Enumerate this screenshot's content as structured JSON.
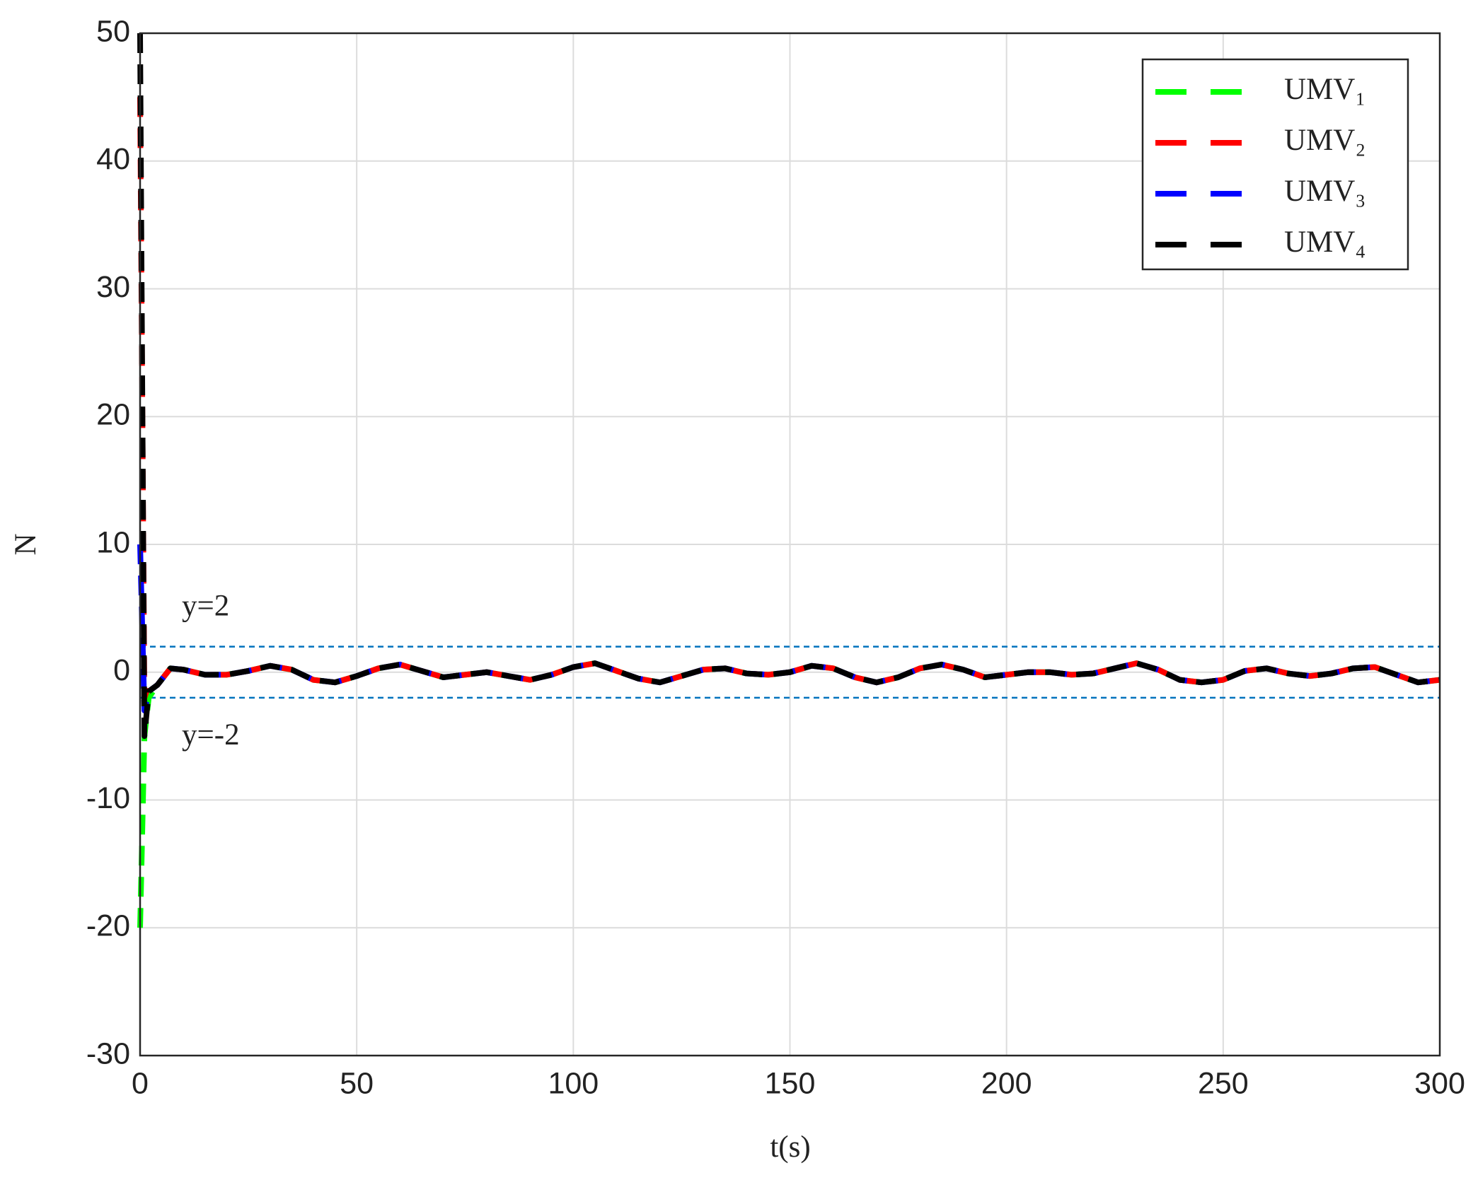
{
  "chart_data": {
    "type": "line",
    "x_label": "t(s)",
    "y_label": "N",
    "xlim": [
      0,
      300
    ],
    "xticks": [
      0,
      50,
      100,
      150,
      200,
      250,
      300
    ],
    "ylim": [
      -30,
      50
    ],
    "yticks": [
      -30,
      -20,
      -10,
      0,
      10,
      20,
      30,
      40,
      50
    ],
    "grid": true,
    "legend": "upper right",
    "x": [
      0,
      1,
      2,
      4,
      7,
      10,
      15,
      20,
      25,
      30,
      35,
      40,
      45,
      50,
      55,
      60,
      65,
      70,
      75,
      80,
      85,
      90,
      95,
      100,
      105,
      110,
      115,
      120,
      125,
      130,
      135,
      140,
      145,
      150,
      155,
      160,
      165,
      170,
      175,
      180,
      185,
      190,
      195,
      200,
      205,
      210,
      215,
      220,
      225,
      230,
      235,
      240,
      245,
      250,
      255,
      260,
      265,
      270,
      275,
      280,
      285,
      290,
      295,
      300
    ],
    "series": [
      {
        "name": "UMV₁",
        "color": "#00ff00",
        "values": [
          -20,
          -5,
          -2,
          -1,
          0.3,
          0.2,
          -0.2,
          -0.2,
          0.1,
          0.5,
          0.2,
          -0.6,
          -0.8,
          -0.3,
          0.3,
          0.6,
          0.1,
          -0.4,
          -0.2,
          0,
          -0.3,
          -0.6,
          -0.2,
          0.4,
          0.7,
          0.1,
          -0.5,
          -0.8,
          -0.3,
          0.2,
          0.3,
          -0.1,
          -0.2,
          0,
          0.5,
          0.3,
          -0.4,
          -0.8,
          -0.4,
          0.3,
          0.6,
          0.2,
          -0.4,
          -0.2,
          0,
          0,
          -0.2,
          -0.1,
          0.3,
          0.7,
          0.2,
          -0.6,
          -0.8,
          -0.6,
          0.1,
          0.3,
          -0.1,
          -0.3,
          -0.1,
          0.3,
          0.4,
          -0.2,
          -0.8,
          -0.6
        ]
      },
      {
        "name": "UMV₂",
        "color": "#ff0000",
        "values": [
          45,
          -2,
          -1,
          -1,
          0.3,
          0.2,
          -0.2,
          -0.2,
          0.1,
          0.5,
          0.2,
          -0.6,
          -0.8,
          -0.3,
          0.3,
          0.6,
          0.1,
          -0.4,
          -0.2,
          0,
          -0.3,
          -0.6,
          -0.2,
          0.4,
          0.7,
          0.1,
          -0.5,
          -0.8,
          -0.3,
          0.2,
          0.3,
          -0.1,
          -0.2,
          0,
          0.5,
          0.3,
          -0.4,
          -0.8,
          -0.4,
          0.3,
          0.6,
          0.2,
          -0.4,
          -0.2,
          0,
          0,
          -0.2,
          -0.1,
          0.3,
          0.7,
          0.2,
          -0.6,
          -0.8,
          -0.6,
          0.1,
          0.3,
          -0.1,
          -0.3,
          -0.1,
          0.3,
          0.4,
          -0.2,
          -0.8,
          -0.6
        ]
      },
      {
        "name": "UMV₃",
        "color": "#0000ff",
        "values": [
          10,
          -3,
          -1.5,
          -1,
          0.3,
          0.2,
          -0.2,
          -0.2,
          0.1,
          0.5,
          0.2,
          -0.6,
          -0.8,
          -0.3,
          0.3,
          0.6,
          0.1,
          -0.4,
          -0.2,
          0,
          -0.3,
          -0.6,
          -0.2,
          0.4,
          0.7,
          0.1,
          -0.5,
          -0.8,
          -0.3,
          0.2,
          0.3,
          -0.1,
          -0.2,
          0,
          0.5,
          0.3,
          -0.4,
          -0.8,
          -0.4,
          0.3,
          0.6,
          0.2,
          -0.4,
          -0.2,
          0,
          0,
          -0.2,
          -0.1,
          0.3,
          0.7,
          0.2,
          -0.6,
          -0.8,
          -0.6,
          0.1,
          0.3,
          -0.1,
          -0.3,
          -0.1,
          0.3,
          0.4,
          -0.2,
          -0.8,
          -0.6
        ]
      },
      {
        "name": "UMV₄",
        "color": "#000000",
        "values": [
          50,
          -5,
          -1.5,
          -1,
          0.3,
          0.2,
          -0.2,
          -0.2,
          0.1,
          0.5,
          0.2,
          -0.6,
          -0.8,
          -0.3,
          0.3,
          0.6,
          0.1,
          -0.4,
          -0.2,
          0,
          -0.3,
          -0.6,
          -0.2,
          0.4,
          0.7,
          0.1,
          -0.5,
          -0.8,
          -0.3,
          0.2,
          0.3,
          -0.1,
          -0.2,
          0,
          0.5,
          0.3,
          -0.4,
          -0.8,
          -0.4,
          0.3,
          0.6,
          0.2,
          -0.4,
          -0.2,
          0,
          0,
          -0.2,
          -0.1,
          0.3,
          0.7,
          0.2,
          -0.6,
          -0.8,
          -0.6,
          0.1,
          0.3,
          -0.1,
          -0.3,
          -0.1,
          0.3,
          0.4,
          -0.2,
          -0.8,
          -0.6
        ]
      }
    ],
    "reference_lines": [
      {
        "value": 2,
        "label": "y=2",
        "color": "#0072bd"
      },
      {
        "value": -2,
        "label": "y=-2",
        "color": "#0072bd"
      }
    ]
  }
}
